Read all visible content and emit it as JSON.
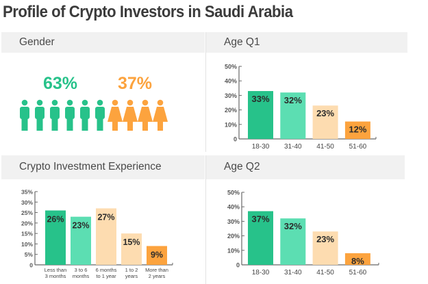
{
  "title": "Profile of Crypto Investors in Saudi Arabia",
  "colors": {
    "dark_green": "#27c28a",
    "light_green": "#5cdeb2",
    "peach": "#fddcb0",
    "orange": "#fca33e",
    "text_dark": "#2b2b2b",
    "axis": "#666666"
  },
  "gender": {
    "label": "Gender",
    "male_pct": "63%",
    "female_pct": "37%",
    "male_icon": "male-person-icon",
    "female_icon": "female-person-icon",
    "male_count": 6,
    "female_count": 4
  },
  "chart_data": [
    {
      "id": "age_q1",
      "type": "bar",
      "title": "Age Q1",
      "categories": [
        "18-30",
        "31-40",
        "41-50",
        "51-60"
      ],
      "values": [
        33,
        32,
        23,
        12
      ],
      "value_labels": [
        "33%",
        "32%",
        "23%",
        "12%"
      ],
      "bar_colors": [
        "#27c28a",
        "#5cdeb2",
        "#fddcb0",
        "#fca33e"
      ],
      "yticks": [
        0,
        10,
        20,
        30,
        40,
        50
      ],
      "ytick_labels": [
        "0",
        "10%",
        "20%",
        "30%",
        "40%",
        "50%"
      ],
      "ylim": [
        0,
        50
      ],
      "grid": false
    },
    {
      "id": "experience",
      "type": "bar",
      "title": "Crypto Investment Experience",
      "categories": [
        [
          "Less than",
          "3 months"
        ],
        [
          "3 to 6",
          "months"
        ],
        [
          "6 months",
          "to 1 year"
        ],
        [
          "1 to 2",
          "years"
        ],
        [
          "More than",
          "2 years"
        ]
      ],
      "values": [
        26,
        23,
        27,
        15,
        9
      ],
      "value_labels": [
        "26%",
        "23%",
        "27%",
        "15%",
        "9%"
      ],
      "bar_colors": [
        "#27c28a",
        "#5cdeb2",
        "#fddcb0",
        "#fddcb0",
        "#fca33e"
      ],
      "yticks": [
        0,
        5,
        10,
        15,
        20,
        25,
        30,
        35
      ],
      "ytick_labels": [
        "0",
        "5%",
        "10%",
        "15%",
        "20%",
        "25%",
        "30%",
        "35%"
      ],
      "ylim": [
        0,
        35
      ],
      "grid": false
    },
    {
      "id": "age_q2",
      "type": "bar",
      "title": "Age Q2",
      "categories": [
        "18-30",
        "31-40",
        "41-50",
        "51-60"
      ],
      "values": [
        37,
        32,
        23,
        8
      ],
      "value_labels": [
        "37%",
        "32%",
        "23%",
        "8%"
      ],
      "bar_colors": [
        "#27c28a",
        "#5cdeb2",
        "#fddcb0",
        "#fca33e"
      ],
      "yticks": [
        0,
        10,
        20,
        30,
        40,
        50
      ],
      "ytick_labels": [
        "0",
        "10%",
        "20%",
        "30%",
        "40%",
        "50%"
      ],
      "ylim": [
        0,
        50
      ],
      "grid": false
    }
  ]
}
